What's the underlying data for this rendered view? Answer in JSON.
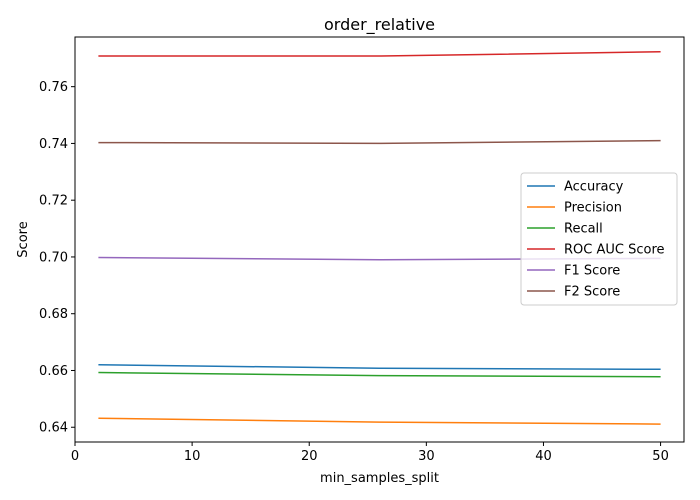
{
  "chart_data": {
    "type": "line",
    "title": "order_relative",
    "xlabel": "min_samples_split",
    "ylabel": "Score",
    "xlim": [
      0,
      52
    ],
    "ylim": [
      0.6348,
      0.7775
    ],
    "xticks": [
      0,
      10,
      20,
      30,
      40,
      50
    ],
    "yticks": [
      0.64,
      0.66,
      0.68,
      0.7,
      0.72,
      0.74,
      0.76
    ],
    "ytick_labels": [
      "0.64",
      "0.66",
      "0.68",
      "0.70",
      "0.72",
      "0.74",
      "0.76"
    ],
    "grid": false,
    "legend_position": "center-right",
    "x": [
      2,
      26,
      50
    ],
    "series": [
      {
        "name": "Accuracy",
        "color": "#1f77b4",
        "values": [
          0.662,
          0.6608,
          0.6604
        ]
      },
      {
        "name": "Precision",
        "color": "#ff7f0e",
        "values": [
          0.6432,
          0.6418,
          0.6411
        ]
      },
      {
        "name": "Recall",
        "color": "#2ca02c",
        "values": [
          0.6593,
          0.6582,
          0.6578
        ]
      },
      {
        "name": "ROC AUC Score",
        "color": "#d62728",
        "values": [
          0.7708,
          0.7708,
          0.7723
        ]
      },
      {
        "name": "F1 Score",
        "color": "#9467bd",
        "values": [
          0.6998,
          0.699,
          0.6995
        ]
      },
      {
        "name": "F2 Score",
        "color": "#8c564b",
        "values": [
          0.7403,
          0.74,
          0.741
        ]
      }
    ]
  }
}
